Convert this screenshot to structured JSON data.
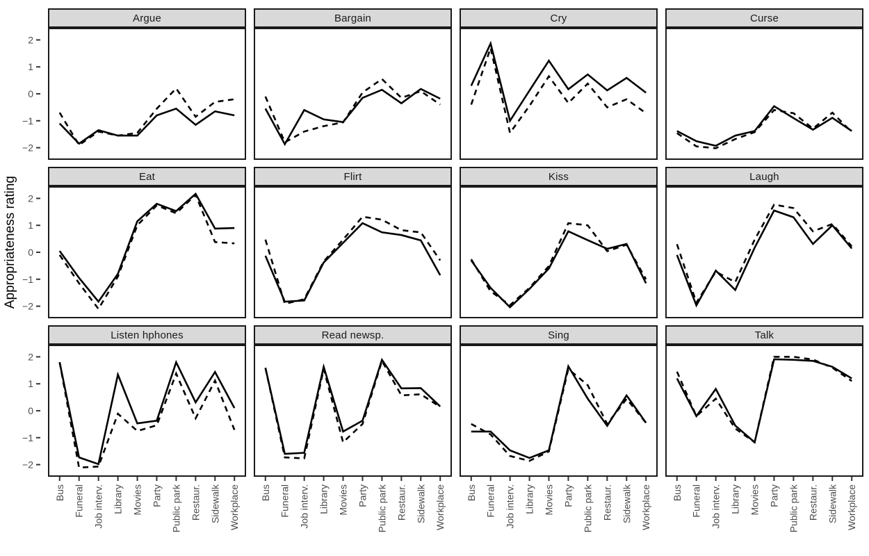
{
  "figure": {
    "y_axis_title": "Appropriateness rating",
    "y_tick_labels": [
      "2",
      "1",
      "0",
      "−1",
      "−2"
    ],
    "y_tick_values": [
      2,
      1,
      0,
      -1,
      -2
    ]
  },
  "style": {
    "strip_fill": "#d9d9d9",
    "strip_border": "#1a1a1a",
    "strip_text": "#1a1a1a",
    "panel_border": "#1a1a1a",
    "panel_fill": "#ffffff",
    "line_color": "#000000",
    "tick_mark_color": "#333333",
    "tick_label_color": "#4d4d4d",
    "axis_title_color": "#000000"
  },
  "chart_data": {
    "type": "line",
    "ylabel": "Appropriateness rating",
    "xlabel": "",
    "ylim": [
      -2.45,
      2.45
    ],
    "y_ticks": [
      2,
      1,
      0,
      -1,
      -2
    ],
    "grid": "off",
    "legend": "none",
    "facet_layout": {
      "rows": 3,
      "cols": 4
    },
    "categories": [
      "Bus",
      "Funeral",
      "Job interv.",
      "Library",
      "Movies",
      "Party",
      "Public park",
      "Restaur.",
      "Sidewalk",
      "Workplace"
    ],
    "facets": [
      {
        "title": "Argue",
        "series": [
          {
            "name": "solid",
            "style": "solid",
            "values": [
              -1.1,
              -1.85,
              -1.35,
              -1.55,
              -1.55,
              -0.8,
              -0.55,
              -1.15,
              -0.65,
              -0.8
            ]
          },
          {
            "name": "dashed",
            "style": "dashed",
            "values": [
              -0.7,
              -1.9,
              -1.4,
              -1.55,
              -1.45,
              -0.55,
              0.2,
              -0.85,
              -0.3,
              -0.2
            ]
          }
        ]
      },
      {
        "title": "Bargain",
        "series": [
          {
            "name": "solid",
            "style": "solid",
            "values": [
              -0.55,
              -1.87,
              -0.6,
              -0.95,
              -1.05,
              -0.15,
              0.15,
              -0.35,
              0.18,
              -0.18
            ]
          },
          {
            "name": "dashed",
            "style": "dashed",
            "values": [
              -0.1,
              -1.8,
              -1.4,
              -1.2,
              -1.06,
              0.05,
              0.55,
              -0.15,
              0.1,
              -0.4
            ]
          }
        ]
      },
      {
        "title": "Cry",
        "series": [
          {
            "name": "solid",
            "style": "solid",
            "values": [
              0.3,
              1.87,
              -1.0,
              0.12,
              1.23,
              0.17,
              0.72,
              0.13,
              0.59,
              0.04
            ]
          },
          {
            "name": "dashed",
            "style": "dashed",
            "values": [
              -0.4,
              1.7,
              -1.45,
              -0.45,
              0.65,
              -0.34,
              0.38,
              -0.5,
              -0.2,
              -0.72
            ]
          }
        ]
      },
      {
        "title": "Curse",
        "series": [
          {
            "name": "solid",
            "style": "solid",
            "values": [
              -1.38,
              -1.76,
              -1.93,
              -1.55,
              -1.38,
              -0.46,
              -0.9,
              -1.33,
              -0.89,
              -1.38
            ]
          },
          {
            "name": "dashed",
            "style": "dashed",
            "values": [
              -1.46,
              -1.95,
              -2.02,
              -1.68,
              -1.42,
              -0.6,
              -0.72,
              -1.29,
              -0.7,
              -1.42
            ]
          }
        ]
      },
      {
        "title": "Eat",
        "series": [
          {
            "name": "solid",
            "style": "solid",
            "values": [
              0.05,
              -0.95,
              -1.83,
              -0.8,
              1.15,
              1.8,
              1.53,
              2.17,
              0.88,
              0.9
            ]
          },
          {
            "name": "dashed",
            "style": "dashed",
            "values": [
              -0.1,
              -1.15,
              -2.1,
              -0.9,
              1.0,
              1.74,
              1.45,
              2.13,
              0.38,
              0.33
            ]
          }
        ]
      },
      {
        "title": "Flirt",
        "series": [
          {
            "name": "solid",
            "style": "solid",
            "values": [
              -0.13,
              -1.83,
              -1.79,
              -0.38,
              0.35,
              1.08,
              0.74,
              0.64,
              0.44,
              -0.85
            ]
          },
          {
            "name": "dashed",
            "style": "dashed",
            "values": [
              0.47,
              -1.91,
              -1.74,
              -0.34,
              0.47,
              1.32,
              1.21,
              0.82,
              0.74,
              -0.3
            ]
          }
        ]
      },
      {
        "title": "Kiss",
        "series": [
          {
            "name": "solid",
            "style": "solid",
            "values": [
              -0.3,
              -1.32,
              -2.04,
              -1.36,
              -0.6,
              0.78,
              0.45,
              0.13,
              0.31,
              -1.15
            ]
          },
          {
            "name": "dashed",
            "style": "dashed",
            "values": [
              -0.26,
              -1.45,
              -1.96,
              -1.32,
              -0.51,
              1.08,
              1.0,
              0.04,
              0.28,
              -1.0
            ]
          }
        ]
      },
      {
        "title": "Laugh",
        "series": [
          {
            "name": "solid",
            "style": "solid",
            "values": [
              -0.1,
              -1.97,
              -0.68,
              -1.4,
              0.17,
              1.55,
              1.3,
              0.31,
              1.0,
              0.14
            ]
          },
          {
            "name": "dashed",
            "style": "dashed",
            "values": [
              0.3,
              -1.87,
              -0.72,
              -1.11,
              0.47,
              1.77,
              1.64,
              0.78,
              1.05,
              0.22
            ]
          }
        ]
      },
      {
        "title": "Listen hphones",
        "series": [
          {
            "name": "solid",
            "style": "solid",
            "values": [
              1.8,
              -1.73,
              -1.98,
              1.34,
              -0.47,
              -0.37,
              1.8,
              0.31,
              1.44,
              0.1
            ]
          },
          {
            "name": "dashed",
            "style": "dashed",
            "values": [
              1.8,
              -2.11,
              -2.07,
              -0.11,
              -0.75,
              -0.54,
              1.38,
              -0.28,
              1.12,
              -0.71
            ]
          }
        ]
      },
      {
        "title": "Read newsp.",
        "series": [
          {
            "name": "solid",
            "style": "solid",
            "values": [
              1.59,
              -1.6,
              -1.56,
              1.63,
              -0.77,
              -0.37,
              1.89,
              0.83,
              0.84,
              0.16
            ]
          },
          {
            "name": "dashed",
            "style": "dashed",
            "values": [
              1.59,
              -1.73,
              -1.77,
              1.55,
              -1.17,
              -0.49,
              1.85,
              0.57,
              0.61,
              0.14
            ]
          }
        ]
      },
      {
        "title": "Sing",
        "series": [
          {
            "name": "solid",
            "style": "solid",
            "values": [
              -0.77,
              -0.77,
              -1.47,
              -1.75,
              -1.47,
              1.65,
              0.45,
              -0.56,
              0.57,
              -0.45
            ]
          },
          {
            "name": "dashed",
            "style": "dashed",
            "values": [
              -0.49,
              -0.88,
              -1.68,
              -1.86,
              -1.51,
              1.55,
              0.95,
              -0.49,
              0.44,
              -0.45
            ]
          }
        ]
      },
      {
        "title": "Talk",
        "series": [
          {
            "name": "solid",
            "style": "solid",
            "values": [
              1.2,
              -0.2,
              0.81,
              -0.55,
              -1.17,
              1.91,
              1.89,
              1.85,
              1.63,
              1.2
            ]
          },
          {
            "name": "dashed",
            "style": "dashed",
            "values": [
              1.45,
              -0.2,
              0.45,
              -0.66,
              -1.17,
              2.0,
              2.0,
              1.9,
              1.6,
              1.1
            ]
          }
        ]
      }
    ]
  }
}
